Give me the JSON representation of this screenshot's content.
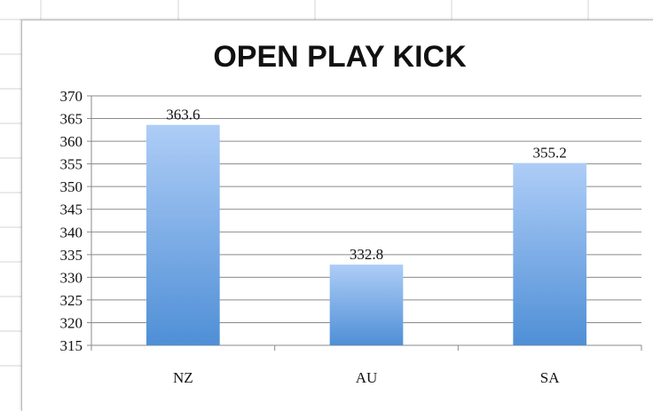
{
  "chart_data": {
    "type": "bar",
    "title": "OPEN PLAY KICK",
    "categories": [
      "NZ",
      "AU",
      "SA"
    ],
    "values": [
      363.6,
      332.8,
      355.2
    ],
    "data_labels": [
      "363.6",
      "332.8",
      "355.2"
    ],
    "xlabel": "",
    "ylabel": "",
    "ylim": [
      315,
      370
    ],
    "ytick_step": 5,
    "yticks": [
      "315",
      "320",
      "325",
      "330",
      "335",
      "340",
      "345",
      "350",
      "355",
      "360",
      "365",
      "370"
    ],
    "grid": true,
    "legend": "none",
    "bar_color_top": "#aecdf7",
    "bar_color_bottom": "#4f8fd6",
    "grid_color": "#8a8a8a"
  }
}
